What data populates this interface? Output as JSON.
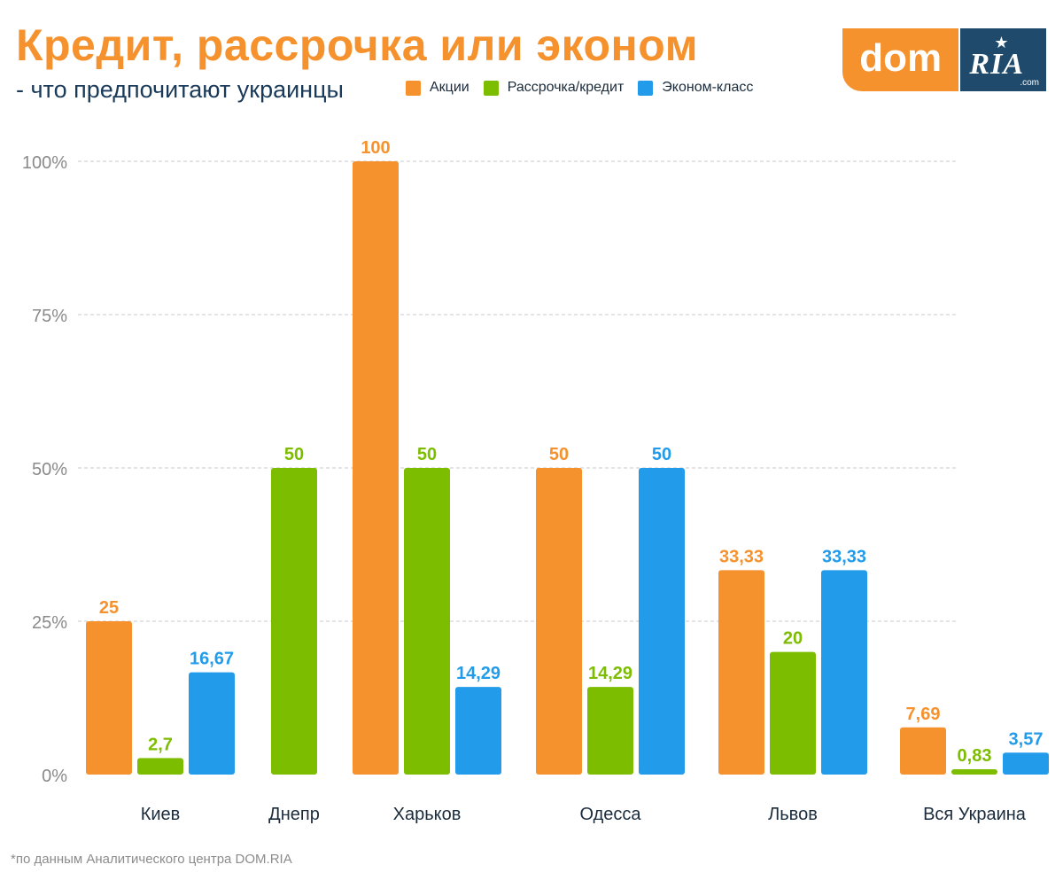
{
  "header": {
    "title": "Кредит, рассрочка или эконом",
    "subtitle": "- что предпочитают украинцы"
  },
  "logo": {
    "dom": "dom",
    "ria": "RIA",
    "com": ".com",
    "star_icon": "star-icon"
  },
  "footnote": "*по данным Аналитического центра DOM.RIA",
  "colors": {
    "orange": "#f5922e",
    "green": "#7dbd00",
    "blue": "#229cea",
    "grid": "#c8c8c8",
    "axis_text": "#8a8a8a",
    "category_text": "#1a2b3c"
  },
  "chart_data": {
    "type": "bar",
    "categories": [
      "Киев",
      "Днепр",
      "Харьков",
      "Одесса",
      "Львов",
      "Вся Украина"
    ],
    "series": [
      {
        "name": "Акции",
        "color": "#f5922e",
        "values": [
          25,
          null,
          100,
          50,
          33.33,
          7.69
        ],
        "labels": [
          "25",
          "",
          "100",
          "50",
          "33,33",
          "7,69"
        ]
      },
      {
        "name": "Рассрочка/кредит",
        "color": "#7dbd00",
        "values": [
          2.7,
          50,
          50,
          14.29,
          20,
          0.83
        ],
        "labels": [
          "2,7",
          "50",
          "50",
          "14,29",
          "20",
          "0,83"
        ]
      },
      {
        "name": "Эконом-класс",
        "color": "#229cea",
        "values": [
          16.67,
          null,
          14.29,
          50,
          33.33,
          3.57
        ],
        "labels": [
          "16,67",
          "",
          "14,29",
          "50",
          "33,33",
          "3,57"
        ]
      }
    ],
    "yticks": [
      {
        "value": 0,
        "label": "0%"
      },
      {
        "value": 25,
        "label": "25%"
      },
      {
        "value": 50,
        "label": "50%"
      },
      {
        "value": 75,
        "label": "75%"
      },
      {
        "value": 100,
        "label": "100%"
      }
    ],
    "ylim": [
      0,
      100
    ],
    "grid": true,
    "legend_position": "top"
  }
}
